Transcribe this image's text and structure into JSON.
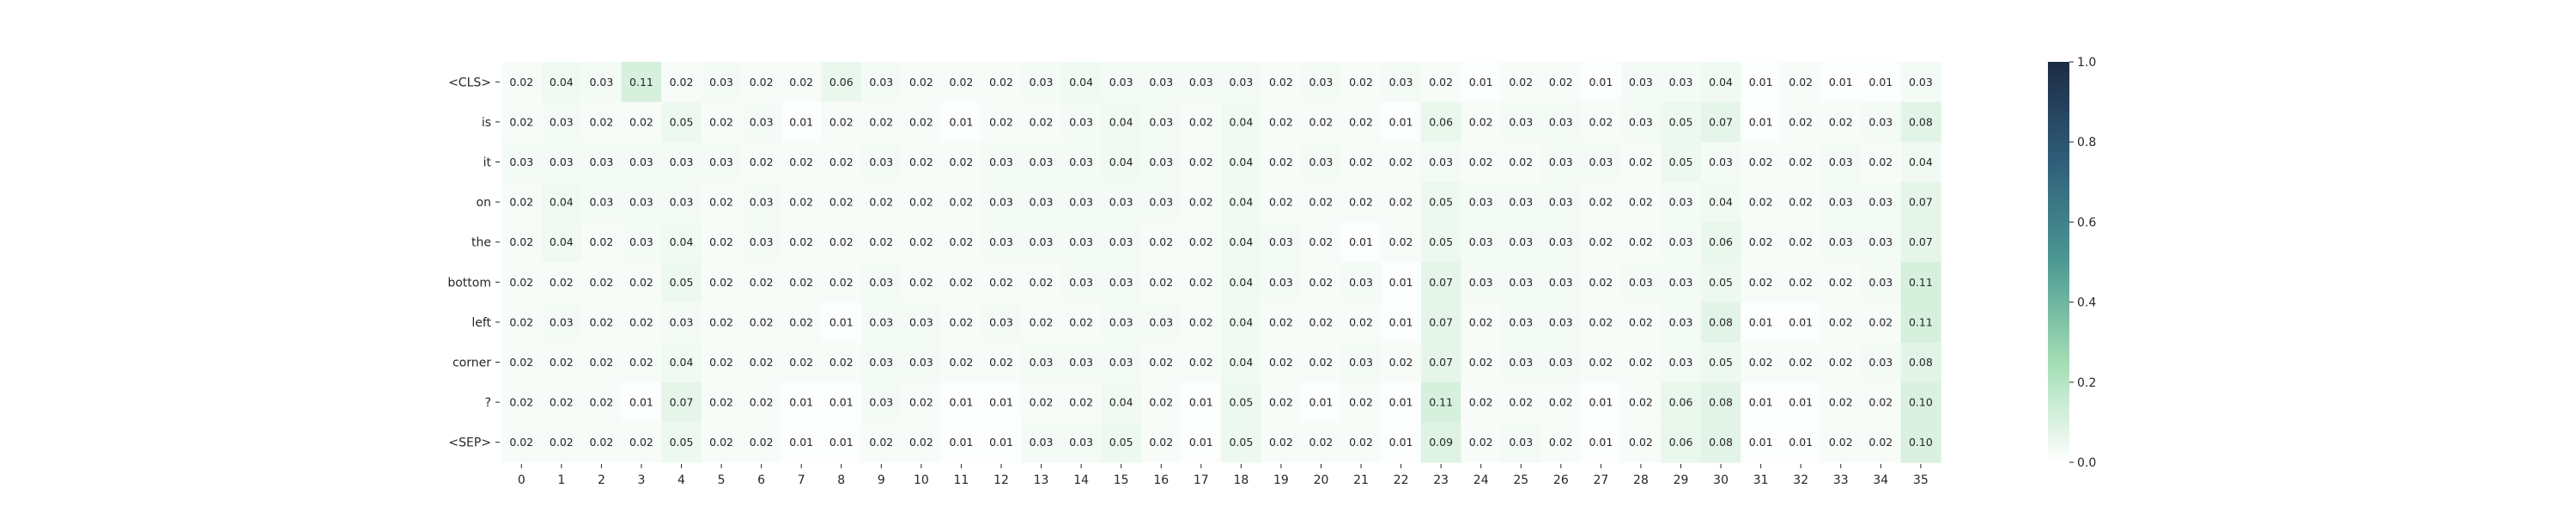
{
  "chart_data": {
    "type": "heatmap",
    "title": "",
    "xlabel": "",
    "ylabel": "",
    "y_categories": [
      "<CLS>",
      "is",
      "it",
      "on",
      "the",
      "bottom",
      "left",
      "corner",
      "?",
      "<SEP>"
    ],
    "x_categories": [
      "0",
      "1",
      "2",
      "3",
      "4",
      "5",
      "6",
      "7",
      "8",
      "9",
      "10",
      "11",
      "12",
      "13",
      "14",
      "15",
      "16",
      "17",
      "18",
      "19",
      "20",
      "21",
      "22",
      "23",
      "24",
      "25",
      "26",
      "27",
      "28",
      "29",
      "30",
      "31",
      "32",
      "33",
      "34",
      "35"
    ],
    "values": [
      [
        0.02,
        0.04,
        0.03,
        0.11,
        0.02,
        0.03,
        0.02,
        0.02,
        0.06,
        0.03,
        0.02,
        0.02,
        0.02,
        0.03,
        0.04,
        0.03,
        0.03,
        0.03,
        0.03,
        0.02,
        0.03,
        0.02,
        0.03,
        0.02,
        0.01,
        0.02,
        0.02,
        0.01,
        0.03,
        0.03,
        0.04,
        0.01,
        0.02,
        0.01,
        0.01,
        0.03
      ],
      [
        0.02,
        0.03,
        0.02,
        0.02,
        0.05,
        0.02,
        0.03,
        0.01,
        0.02,
        0.02,
        0.02,
        0.01,
        0.02,
        0.02,
        0.03,
        0.04,
        0.03,
        0.02,
        0.04,
        0.02,
        0.02,
        0.02,
        0.01,
        0.06,
        0.02,
        0.03,
        0.03,
        0.02,
        0.03,
        0.05,
        0.07,
        0.01,
        0.02,
        0.02,
        0.03,
        0.08
      ],
      [
        0.03,
        0.03,
        0.03,
        0.03,
        0.03,
        0.03,
        0.02,
        0.02,
        0.02,
        0.03,
        0.02,
        0.02,
        0.03,
        0.03,
        0.03,
        0.04,
        0.03,
        0.02,
        0.04,
        0.02,
        0.03,
        0.02,
        0.02,
        0.03,
        0.02,
        0.02,
        0.03,
        0.03,
        0.02,
        0.05,
        0.03,
        0.02,
        0.02,
        0.03,
        0.02,
        0.04
      ],
      [
        0.02,
        0.04,
        0.03,
        0.03,
        0.03,
        0.02,
        0.03,
        0.02,
        0.02,
        0.02,
        0.02,
        0.02,
        0.03,
        0.03,
        0.03,
        0.03,
        0.03,
        0.02,
        0.04,
        0.02,
        0.02,
        0.02,
        0.02,
        0.05,
        0.03,
        0.03,
        0.03,
        0.02,
        0.02,
        0.03,
        0.04,
        0.02,
        0.02,
        0.03,
        0.03,
        0.07
      ],
      [
        0.02,
        0.04,
        0.02,
        0.03,
        0.04,
        0.02,
        0.03,
        0.02,
        0.02,
        0.02,
        0.02,
        0.02,
        0.03,
        0.03,
        0.03,
        0.03,
        0.02,
        0.02,
        0.04,
        0.03,
        0.02,
        0.01,
        0.02,
        0.05,
        0.03,
        0.03,
        0.03,
        0.02,
        0.02,
        0.03,
        0.06,
        0.02,
        0.02,
        0.03,
        0.03,
        0.07
      ],
      [
        0.02,
        0.02,
        0.02,
        0.02,
        0.05,
        0.02,
        0.02,
        0.02,
        0.02,
        0.03,
        0.02,
        0.02,
        0.02,
        0.02,
        0.03,
        0.03,
        0.02,
        0.02,
        0.04,
        0.03,
        0.02,
        0.03,
        0.01,
        0.07,
        0.03,
        0.03,
        0.03,
        0.02,
        0.03,
        0.03,
        0.05,
        0.02,
        0.02,
        0.02,
        0.03,
        0.11
      ],
      [
        0.02,
        0.03,
        0.02,
        0.02,
        0.03,
        0.02,
        0.02,
        0.02,
        0.01,
        0.03,
        0.03,
        0.02,
        0.03,
        0.02,
        0.02,
        0.03,
        0.03,
        0.02,
        0.04,
        0.02,
        0.02,
        0.02,
        0.01,
        0.07,
        0.02,
        0.03,
        0.03,
        0.02,
        0.02,
        0.03,
        0.08,
        0.01,
        0.01,
        0.02,
        0.02,
        0.11
      ],
      [
        0.02,
        0.02,
        0.02,
        0.02,
        0.04,
        0.02,
        0.02,
        0.02,
        0.02,
        0.03,
        0.03,
        0.02,
        0.02,
        0.03,
        0.03,
        0.03,
        0.02,
        0.02,
        0.04,
        0.02,
        0.02,
        0.03,
        0.02,
        0.07,
        0.02,
        0.03,
        0.03,
        0.02,
        0.02,
        0.03,
        0.05,
        0.02,
        0.02,
        0.02,
        0.03,
        0.08
      ],
      [
        0.02,
        0.02,
        0.02,
        0.01,
        0.07,
        0.02,
        0.02,
        0.01,
        0.01,
        0.03,
        0.02,
        0.01,
        0.01,
        0.02,
        0.02,
        0.04,
        0.02,
        0.01,
        0.05,
        0.02,
        0.01,
        0.02,
        0.01,
        0.11,
        0.02,
        0.02,
        0.02,
        0.01,
        0.02,
        0.06,
        0.08,
        0.01,
        0.01,
        0.02,
        0.02,
        0.1
      ],
      [
        0.02,
        0.02,
        0.02,
        0.02,
        0.05,
        0.02,
        0.02,
        0.01,
        0.01,
        0.02,
        0.02,
        0.01,
        0.01,
        0.03,
        0.03,
        0.05,
        0.02,
        0.01,
        0.05,
        0.02,
        0.02,
        0.02,
        0.01,
        0.09,
        0.02,
        0.03,
        0.02,
        0.01,
        0.02,
        0.06,
        0.08,
        0.01,
        0.01,
        0.02,
        0.02,
        0.1
      ]
    ],
    "value_format": "2 decimals",
    "vmin": 0.0,
    "vmax": 1.0,
    "colorbar_ticks": [
      "0.0",
      "0.2",
      "0.4",
      "0.6",
      "0.8",
      "1.0"
    ],
    "colormap": [
      "#ffffff",
      "#a3ddb5",
      "#4d9993",
      "#2f5e7a",
      "#1d2b44"
    ],
    "grid": false,
    "legend": "colorbar-right"
  }
}
